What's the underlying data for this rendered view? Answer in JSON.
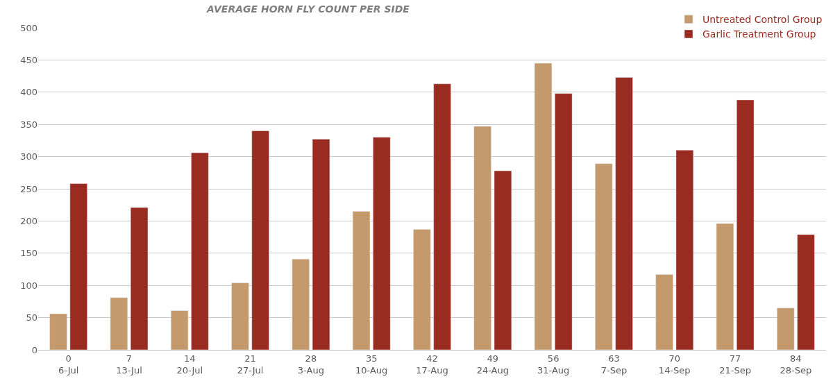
{
  "chart_data": {
    "type": "bar",
    "title": "AVERAGE HORN FLY COUNT PER SIDE",
    "categories": [
      "0\n6-Jul",
      "7\n13-Jul",
      "14\n20-Jul",
      "21\n27-Jul",
      "28\n3-Aug",
      "35\n10-Aug",
      "42\n17-Aug",
      "49\n24-Aug",
      "56\n31-Aug",
      "63\n7-Sep",
      "70\n14-Sep",
      "77\n21-Sep",
      "84\n28-Sep"
    ],
    "series": [
      {
        "name": "Untreated Control Group",
        "color": "#c49a6c",
        "values": [
          56,
          81,
          61,
          104,
          141,
          215,
          187,
          347,
          445,
          289,
          117,
          196,
          65
        ]
      },
      {
        "name": "Garlic Treatment Group",
        "color": "#992b21",
        "values": [
          258,
          221,
          306,
          340,
          327,
          330,
          413,
          278,
          398,
          423,
          310,
          388,
          179
        ]
      }
    ],
    "ylim": [
      0,
      500
    ],
    "yticks": [
      0,
      50,
      100,
      150,
      200,
      250,
      300,
      350,
      400,
      450,
      500
    ],
    "grid": "y",
    "legend": "top right"
  }
}
